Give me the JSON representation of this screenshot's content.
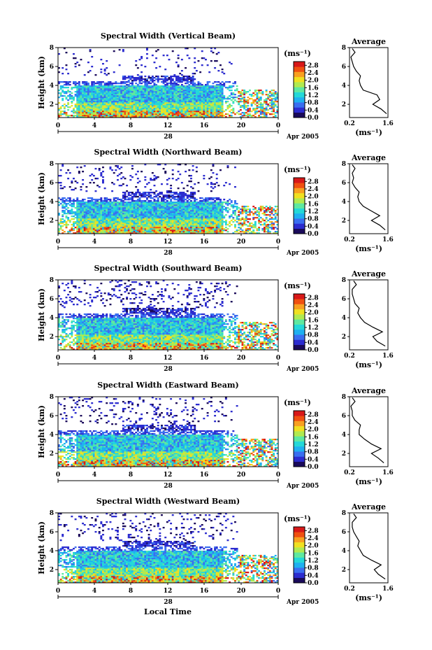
{
  "figure": {
    "xlabel": "Local Time"
  },
  "colorbar": {
    "unit_label": "(ms⁻¹)",
    "ticks": [
      "2.8",
      "2.4",
      "2.0",
      "1.6",
      "1.2",
      "0.8",
      "0.4",
      "0.0"
    ],
    "tick_values": [
      2.8,
      2.4,
      2.0,
      1.6,
      1.2,
      0.8,
      0.4,
      0.0
    ],
    "range": [
      0.0,
      3.0
    ],
    "colors": [
      "#1a0a5a",
      "#2c2ccf",
      "#3a6ef0",
      "#1fb0f0",
      "#24d8d8",
      "#5ee8a0",
      "#b0ea50",
      "#f0e020",
      "#f8a020",
      "#f05010",
      "#d81818"
    ]
  },
  "chart_data": [
    {
      "type": "heatmap",
      "title": "Spectral Width (Vertical Beam)",
      "ylabel": "Height (km)",
      "xlim": [
        0,
        24
      ],
      "ylim": [
        0.6,
        8
      ],
      "xticks": [
        "0",
        "4",
        "8",
        "12",
        "16",
        "20",
        "0"
      ],
      "yticks": [
        "2",
        "4",
        "6",
        "8"
      ],
      "date_label": "28",
      "date_suffix": "Apr 2005",
      "profile": {
        "title": "Average",
        "xlabel": "(ms⁻¹)",
        "xticks": [
          "0.2",
          "1.6"
        ],
        "yticks": [
          "2",
          "4",
          "6",
          "8"
        ],
        "xlim": [
          0.2,
          1.6
        ],
        "ylim": [
          0.6,
          8
        ],
        "height": [
          1.0,
          1.5,
          2.0,
          2.5,
          3.0,
          3.5,
          4.0,
          4.5,
          5.0,
          5.5,
          6.0,
          6.5,
          7.0,
          7.5,
          7.9
        ],
        "width": [
          1.55,
          1.35,
          1.05,
          1.3,
          1.2,
          0.7,
          0.6,
          0.55,
          0.6,
          0.45,
          0.35,
          0.3,
          0.25,
          0.4,
          0.3
        ]
      }
    },
    {
      "type": "heatmap",
      "title": "Spectral Width (Northward Beam)",
      "ylabel": "Height (km)",
      "xlim": [
        0,
        24
      ],
      "ylim": [
        0.6,
        8
      ],
      "xticks": [
        "0",
        "4",
        "8",
        "12",
        "16",
        "20",
        "0"
      ],
      "yticks": [
        "2",
        "4",
        "6",
        "8"
      ],
      "date_label": "28",
      "date_suffix": "Apr 2005",
      "profile": {
        "title": "Average",
        "xlabel": "(ms⁻¹)",
        "xticks": [
          "0.2",
          "1.6"
        ],
        "yticks": [
          "2",
          "4",
          "6",
          "8"
        ],
        "xlim": [
          0.2,
          1.6
        ],
        "ylim": [
          0.6,
          8
        ],
        "height": [
          1.0,
          1.5,
          2.0,
          2.5,
          3.0,
          3.5,
          4.0,
          4.5,
          5.0,
          5.5,
          6.0,
          6.5,
          7.0,
          7.5,
          7.9
        ],
        "width": [
          1.5,
          1.3,
          1.0,
          1.3,
          1.0,
          0.7,
          0.55,
          0.5,
          0.55,
          0.4,
          0.3,
          0.35,
          0.3,
          0.4,
          0.3
        ]
      }
    },
    {
      "type": "heatmap",
      "title": "Spectral Width (Southward Beam)",
      "ylabel": "Height (km)",
      "xlim": [
        0,
        24
      ],
      "ylim": [
        0.6,
        8
      ],
      "xticks": [
        "0",
        "4",
        "8",
        "12",
        "16",
        "20",
        "0"
      ],
      "yticks": [
        "2",
        "4",
        "6",
        "8"
      ],
      "date_label": "28",
      "date_suffix": "Apr 2005",
      "profile": {
        "title": "Average",
        "xlabel": "(ms⁻¹)",
        "xticks": [
          "0.2",
          "1.6"
        ],
        "yticks": [
          "2",
          "4",
          "6",
          "8"
        ],
        "xlim": [
          0.2,
          1.6
        ],
        "ylim": [
          0.6,
          8
        ],
        "height": [
          1.0,
          1.5,
          2.0,
          2.5,
          3.0,
          3.5,
          4.0,
          4.5,
          5.0,
          5.5,
          6.0,
          6.5,
          7.0,
          7.5,
          7.9
        ],
        "width": [
          1.5,
          1.2,
          1.05,
          1.4,
          1.05,
          0.75,
          0.6,
          0.5,
          0.55,
          0.4,
          0.35,
          0.3,
          0.3,
          0.45,
          0.35
        ]
      }
    },
    {
      "type": "heatmap",
      "title": "Spectral Width (Eastward Beam)",
      "ylabel": "Height (km)",
      "xlim": [
        0,
        24
      ],
      "ylim": [
        0.6,
        8
      ],
      "xticks": [
        "0",
        "4",
        "8",
        "12",
        "16",
        "20",
        "0"
      ],
      "yticks": [
        "2",
        "4",
        "6",
        "8"
      ],
      "date_label": "28",
      "date_suffix": "Apr 2005",
      "profile": {
        "title": "Average",
        "xlabel": "(ms⁻¹)",
        "xticks": [
          "0.2",
          "1.6"
        ],
        "yticks": [
          "2",
          "4",
          "6",
          "8"
        ],
        "xlim": [
          0.2,
          1.6
        ],
        "ylim": [
          0.6,
          8
        ],
        "height": [
          1.0,
          1.5,
          2.0,
          2.5,
          3.0,
          3.5,
          4.0,
          4.5,
          5.0,
          5.5,
          6.0,
          6.5,
          7.0,
          7.5,
          7.9
        ],
        "width": [
          1.45,
          1.25,
          1.0,
          1.35,
          1.0,
          0.75,
          0.55,
          0.55,
          0.6,
          0.4,
          0.3,
          0.3,
          0.25,
          0.4,
          0.3
        ]
      }
    },
    {
      "type": "heatmap",
      "title": "Spectral Width (Westward Beam)",
      "ylabel": "Height (km)",
      "xlim": [
        0,
        24
      ],
      "ylim": [
        0.6,
        8
      ],
      "xticks": [
        "0",
        "4",
        "8",
        "12",
        "16",
        "20",
        "0"
      ],
      "yticks": [
        "2",
        "4",
        "6",
        "8"
      ],
      "date_label": "28",
      "date_suffix": "Apr 2005",
      "profile": {
        "title": "Average",
        "xlabel": "(ms⁻¹)",
        "xticks": [
          "0.2",
          "1.6"
        ],
        "yticks": [
          "2",
          "4",
          "6",
          "8"
        ],
        "xlim": [
          0.2,
          1.6
        ],
        "ylim": [
          0.6,
          8
        ],
        "height": [
          1.0,
          1.5,
          2.0,
          2.5,
          3.0,
          3.5,
          4.0,
          4.5,
          5.0,
          5.5,
          6.0,
          6.5,
          7.0,
          7.5,
          7.9
        ],
        "width": [
          1.5,
          1.25,
          1.1,
          1.35,
          1.0,
          0.7,
          0.6,
          0.5,
          0.55,
          0.45,
          0.35,
          0.3,
          0.3,
          0.45,
          0.35
        ]
      }
    }
  ]
}
